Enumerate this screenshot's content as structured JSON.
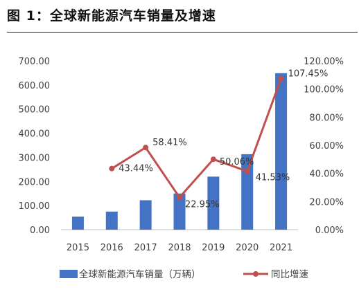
{
  "figure_title": "图 1：全球新能源汽车销量及增速",
  "chart_data": {
    "type": "bar+line",
    "categories": [
      "2015",
      "2016",
      "2017",
      "2018",
      "2019",
      "2020",
      "2021"
    ],
    "series": [
      {
        "name": "全球新能源汽车销量（万辆）",
        "type": "bar",
        "axis": "left",
        "color": "#4472C4",
        "values": [
          54,
          75,
          122,
          150,
          220,
          313,
          649
        ]
      },
      {
        "name": "同比增速",
        "type": "line",
        "axis": "right",
        "color": "#C0504D",
        "values": [
          null,
          43.44,
          58.41,
          22.95,
          50.06,
          41.53,
          107.45
        ],
        "data_labels": [
          "",
          "43.44%",
          "58.41%",
          "22.95%",
          "50.06%",
          "41.53%",
          "107.45%"
        ]
      }
    ],
    "left_axis": {
      "range": [
        0,
        700
      ],
      "ticks": [
        "0.00",
        "100.00",
        "200.00",
        "300.00",
        "400.00",
        "500.00",
        "600.00",
        "700.00"
      ]
    },
    "right_axis": {
      "range": [
        0,
        120
      ],
      "ticks": [
        "0.00%",
        "20.00%",
        "40.00%",
        "60.00%",
        "80.00%",
        "100.00%",
        "120.00%"
      ]
    },
    "grid": false,
    "legend": "bottom"
  }
}
